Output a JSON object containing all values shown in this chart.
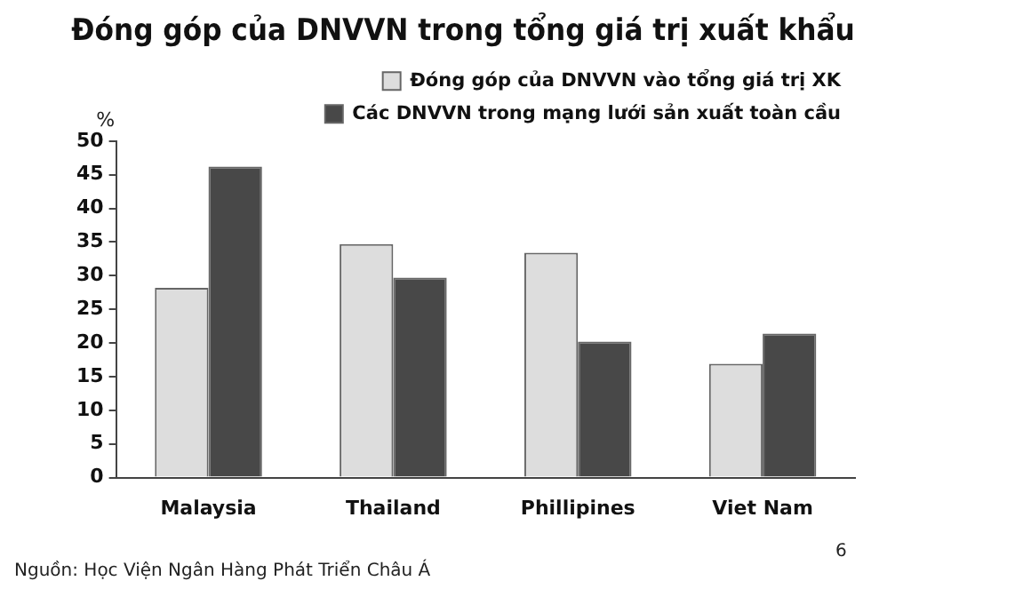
{
  "chart_data": {
    "type": "bar",
    "title": "Đóng góp của DNVVN trong tổng giá trị xuất khẩu",
    "ylabel": "%",
    "categories": [
      "Malaysia",
      "Thailand",
      "Phillipines",
      "Viet Nam"
    ],
    "series": [
      {
        "name": "Đóng góp của DNVVN vào tổng giá trị XK",
        "color": "#dddddd",
        "values": [
          28.2,
          34.7,
          33.4,
          16.9
        ]
      },
      {
        "name": "Các DNVVN trong mạng lưới sản xuất toàn cầu",
        "color": "#484848",
        "values": [
          46.2,
          29.7,
          20.2,
          21.4
        ]
      }
    ],
    "ylim": [
      0,
      50
    ],
    "yticks": [
      0,
      5,
      10,
      15,
      20,
      25,
      30,
      35,
      40,
      45,
      50
    ],
    "grid": false,
    "legend": "top right",
    "annotations": [
      "Nguồn: Học Viện Ngân Hàng Phát Triển Châu Á",
      "6"
    ]
  }
}
